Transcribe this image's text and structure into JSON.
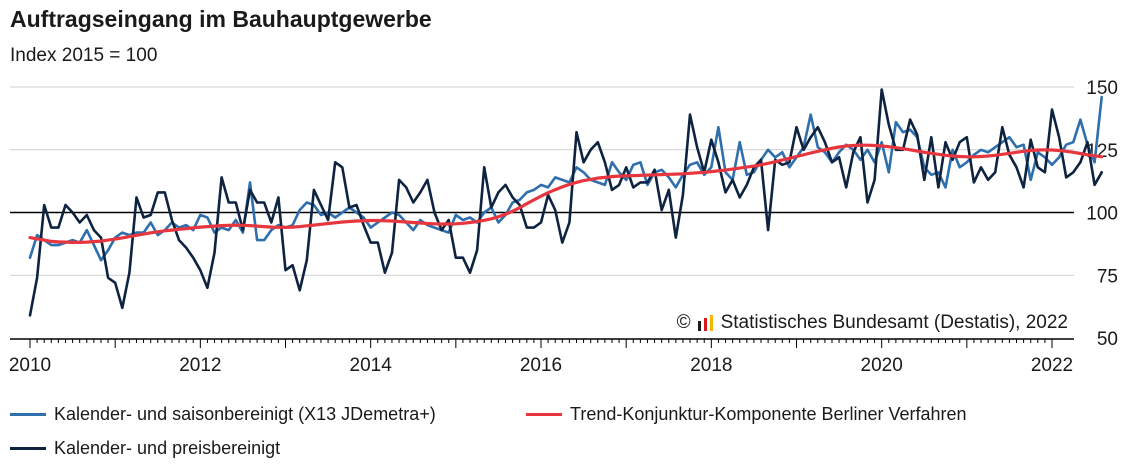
{
  "chart_data": {
    "type": "line",
    "title": "Auftragseingang im Bauhauptgewerbe",
    "subtitle": "Index 2015 = 100",
    "xlabel": "",
    "ylabel": "",
    "xlim": [
      2010,
      2022
    ],
    "ylim": [
      50,
      150
    ],
    "x_ticks": [
      "2010",
      "2012",
      "2014",
      "2016",
      "2018",
      "2020",
      "2022"
    ],
    "y_ticks": [
      "50",
      "75",
      "100",
      "125",
      "150"
    ],
    "reference_line": 100,
    "grid": "horizontal",
    "legend_position": "bottom",
    "start": "2010-01",
    "copyright": "Statistisches Bundesamt (Destatis), 2022",
    "series": [
      {
        "name": "Kalender- und saisonbereinigt (X13 JDemetra+)",
        "color": "#2f6fad",
        "values": [
          82,
          91,
          89,
          87,
          87,
          88,
          89,
          88,
          93,
          87,
          81,
          85,
          90,
          92,
          91,
          92,
          92,
          96,
          91,
          93,
          96,
          94,
          95,
          93,
          99,
          98,
          92,
          94,
          93,
          97,
          92,
          112,
          89,
          89,
          93,
          95,
          94,
          95,
          101,
          104,
          103,
          99,
          100,
          98,
          100,
          102,
          100,
          98,
          94,
          96,
          98,
          100,
          99,
          96,
          93,
          97,
          95,
          94,
          93,
          92,
          99,
          97,
          98,
          96,
          100,
          102,
          96,
          99,
          104,
          105,
          108,
          109,
          111,
          110,
          114,
          113,
          112,
          118,
          116,
          113,
          112,
          111,
          120,
          116,
          113,
          119,
          120,
          111,
          116,
          117,
          114,
          110,
          115,
          119,
          120,
          115,
          118,
          134,
          116,
          113,
          128,
          115,
          116,
          121,
          125,
          122,
          124,
          118,
          122,
          126,
          139,
          126,
          124,
          120,
          124,
          127,
          125,
          121,
          125,
          120,
          128,
          116,
          136,
          132,
          133,
          130,
          118,
          115,
          116,
          110,
          125,
          118,
          120,
          123,
          125,
          124,
          126,
          128,
          130,
          126,
          127,
          113,
          124,
          122,
          119,
          122,
          127,
          128,
          137,
          127,
          120,
          146
        ]
      },
      {
        "name": "Kalender- und preisbereinigt",
        "color": "#0d2340",
        "values": [
          59,
          74,
          103,
          94,
          94,
          103,
          100,
          96,
          99,
          93,
          90,
          74,
          72,
          62,
          76,
          106,
          98,
          99,
          108,
          108,
          97,
          89,
          86,
          82,
          77,
          70,
          84,
          114,
          104,
          104,
          93,
          109,
          104,
          104,
          96,
          106,
          77,
          79,
          69,
          81,
          109,
          103,
          97,
          120,
          118,
          102,
          103,
          95,
          88,
          88,
          76,
          84,
          113,
          110,
          104,
          108,
          113,
          100,
          93,
          97,
          82,
          82,
          76,
          85,
          118,
          102,
          108,
          111,
          106,
          103,
          94,
          94,
          96,
          107,
          101,
          88,
          96,
          132,
          120,
          125,
          128,
          120,
          109,
          111,
          118,
          110,
          112,
          112,
          117,
          101,
          109,
          90,
          107,
          139,
          126,
          116,
          129,
          120,
          108,
          113,
          106,
          111,
          118,
          121,
          93,
          121,
          119,
          120,
          134,
          125,
          130,
          134,
          128,
          120,
          122,
          110,
          124,
          130,
          104,
          113,
          149,
          135,
          125,
          125,
          137,
          131,
          113,
          130,
          110,
          128,
          121,
          128,
          130,
          112,
          118,
          113,
          116,
          134,
          123,
          118,
          110,
          129,
          118,
          116,
          141,
          130,
          114,
          116,
          120,
          128,
          111,
          116
        ]
      },
      {
        "name": "Trend-Konjunktur-Komponente Berliner Verfahren",
        "color": "#e8363f",
        "values": [
          90,
          89.5,
          89,
          88.5,
          88.3,
          88.2,
          88.1,
          88.1,
          88.2,
          88.4,
          88.6,
          89,
          89.4,
          89.9,
          90.4,
          90.9,
          91.4,
          91.9,
          92.3,
          92.7,
          93,
          93.3,
          93.6,
          93.9,
          94.2,
          94.4,
          94.6,
          94.8,
          94.9,
          95,
          94.9,
          94.8,
          94.6,
          94.4,
          94.2,
          94.1,
          94.1,
          94.2,
          94.4,
          94.7,
          95,
          95.3,
          95.6,
          95.9,
          96.2,
          96.4,
          96.6,
          96.7,
          96.8,
          96.8,
          96.7,
          96.6,
          96.4,
          96.2,
          96,
          95.8,
          95.6,
          95.5,
          95.4,
          95.4,
          95.5,
          95.7,
          96,
          96.4,
          96.9,
          97.5,
          98.3,
          99.3,
          100.5,
          101.9,
          103.5,
          105,
          106.5,
          107.9,
          109.1,
          110.2,
          111.2,
          112,
          112.7,
          113.2,
          113.7,
          114,
          114.3,
          114.5,
          114.6,
          114.7,
          114.8,
          114.9,
          115,
          115.1,
          115.2,
          115.3,
          115.4,
          115.6,
          115.8,
          116,
          116.3,
          116.6,
          116.9,
          117.3,
          117.7,
          118.1,
          118.5,
          119,
          119.6,
          120.2,
          120.9,
          121.6,
          122.3,
          123,
          123.7,
          124.4,
          125,
          125.6,
          126.1,
          126.5,
          126.7,
          126.8,
          126.8,
          126.7,
          126.5,
          126.2,
          125.8,
          125.4,
          125,
          124.5,
          124,
          123.6,
          123.2,
          122.8,
          122.5,
          122.3,
          122.2,
          122.2,
          122.3,
          122.5,
          122.8,
          123.2,
          123.6,
          124,
          124.4,
          124.7,
          124.9,
          125,
          124.9,
          124.7,
          124.4,
          124,
          123.5,
          123,
          122.6,
          122.2
        ]
      }
    ]
  }
}
